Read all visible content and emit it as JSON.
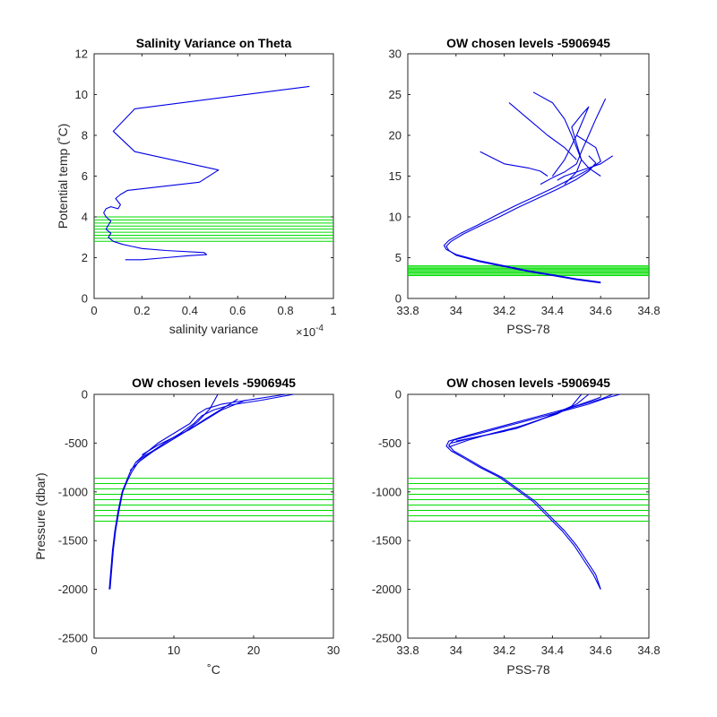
{
  "colors": {
    "profile": "#0000e6",
    "levels": "#00dd00",
    "axis": "#262626"
  },
  "chart_data": [
    {
      "id": "var",
      "type": "line",
      "title": "Salinity Variance on Theta",
      "xlabel": "salinity variance",
      "ylabel": "Potential temp (˚C)",
      "xlim": [
        0,
        1
      ],
      "ylim": [
        0,
        12
      ],
      "xticks": [
        0,
        0.2,
        0.4,
        0.6,
        0.8,
        1
      ],
      "xtick_labels": [
        "0",
        "0.2",
        "0.4",
        "0.6",
        "0.8",
        "1"
      ],
      "yticks": [
        0,
        2,
        4,
        6,
        8,
        10,
        12
      ],
      "ytick_labels": [
        "0",
        "2",
        "4",
        "6",
        "8",
        "10",
        "12"
      ],
      "x_exponent": "×10",
      "x_exponent_power": "-4",
      "series": [
        {
          "x": [
            0.13,
            0.2,
            0.3,
            0.4,
            0.47,
            0.46,
            0.3,
            0.2,
            0.16,
            0.12,
            0.08,
            0.06,
            0.07,
            0.05,
            0.06,
            0.07,
            0.05,
            0.04,
            0.05,
            0.07,
            0.1,
            0.11,
            0.09,
            0.11,
            0.14,
            0.44,
            0.52,
            0.17,
            0.08,
            0.17,
            0.9
          ],
          "y": [
            1.9,
            1.9,
            2.0,
            2.1,
            2.15,
            2.25,
            2.35,
            2.45,
            2.55,
            2.65,
            2.8,
            3.0,
            3.2,
            3.4,
            3.6,
            3.8,
            4.0,
            4.2,
            4.4,
            4.5,
            4.4,
            4.6,
            4.9,
            5.1,
            5.3,
            5.7,
            6.3,
            7.2,
            8.2,
            9.3,
            10.4
          ]
        }
      ],
      "levels": [
        2.8,
        2.95,
        3.1,
        3.25,
        3.4,
        3.55,
        3.7,
        3.85,
        4.0
      ],
      "grid": false
    },
    {
      "id": "ts",
      "type": "line",
      "title": "OW chosen levels -5906945",
      "xlabel": "PSS-78",
      "ylabel": "",
      "xlim": [
        33.8,
        34.8
      ],
      "ylim": [
        0,
        30
      ],
      "xticks": [
        33.8,
        34.0,
        34.2,
        34.4,
        34.6,
        34.8
      ],
      "xtick_labels": [
        "33.8",
        "34",
        "34.2",
        "34.4",
        "34.6",
        "34.8"
      ],
      "yticks": [
        0,
        5,
        10,
        15,
        20,
        25,
        30
      ],
      "ytick_labels": [
        "0",
        "5",
        "10",
        "15",
        "20",
        "25",
        "30"
      ],
      "series": [
        {
          "x": [
            34.6,
            34.5,
            34.4,
            34.3,
            34.2,
            34.1,
            34.0,
            33.97,
            33.96,
            33.98,
            34.03,
            34.1,
            34.18,
            34.26,
            34.34,
            34.42,
            34.5,
            34.55,
            34.58,
            34.55
          ],
          "y": [
            1.9,
            2.3,
            2.8,
            3.3,
            3.9,
            4.5,
            5.3,
            5.9,
            6.4,
            7.0,
            7.9,
            8.9,
            10.0,
            11.2,
            12.3,
            13.4,
            14.6,
            15.6,
            16.6,
            17.5
          ]
        },
        {
          "x": [
            34.6,
            34.5,
            34.4,
            34.3,
            34.2,
            34.1,
            34.0,
            33.96,
            33.95,
            33.97,
            34.02,
            34.09,
            34.16,
            34.24,
            34.32,
            34.4,
            34.48,
            34.55,
            34.6,
            34.58,
            34.5
          ],
          "y": [
            2.0,
            2.4,
            2.9,
            3.4,
            4.0,
            4.6,
            5.4,
            6.0,
            6.5,
            7.1,
            8.0,
            9.0,
            10.1,
            11.3,
            12.4,
            13.5,
            14.7,
            15.8,
            16.8,
            18.5,
            20.0
          ]
        },
        {
          "x": [
            34.45,
            34.5,
            34.52,
            34.5,
            34.48,
            34.52,
            34.55,
            34.5,
            34.45,
            34.4
          ],
          "y": [
            14.0,
            15.5,
            17.0,
            19.0,
            21.0,
            22.5,
            23.5,
            20.0,
            17.0,
            15.0
          ]
        },
        {
          "x": [
            34.32,
            34.4,
            34.45,
            34.48,
            34.5,
            34.52,
            34.55,
            34.6
          ],
          "y": [
            25.3,
            24.0,
            22.0,
            20.0,
            18.5,
            17.0,
            16.0,
            15.0
          ]
        },
        {
          "x": [
            34.22,
            34.3,
            34.38,
            34.45,
            34.5
          ],
          "y": [
            24.0,
            22.0,
            20.0,
            18.5,
            17.0
          ]
        },
        {
          "x": [
            34.62,
            34.58,
            34.55,
            34.52,
            34.5,
            34.45,
            34.4,
            34.35
          ],
          "y": [
            24.5,
            22.0,
            20.0,
            18.0,
            16.5,
            15.5,
            14.8,
            14.0
          ]
        },
        {
          "x": [
            34.1,
            34.2,
            34.3,
            34.35,
            34.38
          ],
          "y": [
            18.0,
            16.5,
            16.0,
            15.6,
            15.0
          ]
        },
        {
          "x": [
            34.65,
            34.6,
            34.55,
            34.5,
            34.45,
            34.42
          ],
          "y": [
            17.5,
            16.5,
            16.0,
            15.5,
            15.0,
            14.5
          ]
        }
      ],
      "levels": [
        2.8,
        2.95,
        3.1,
        3.25,
        3.4,
        3.55,
        3.7,
        3.85,
        4.0
      ],
      "grid": false
    },
    {
      "id": "tp",
      "type": "line",
      "title": "OW chosen levels -5906945",
      "xlabel": "˚C",
      "ylabel": "Pressure (dbar)",
      "xlim": [
        0,
        30
      ],
      "ylim": [
        -2500,
        0
      ],
      "xticks": [
        0,
        10,
        20,
        30
      ],
      "xtick_labels": [
        "0",
        "10",
        "20",
        "30"
      ],
      "yticks": [
        -2500,
        -2000,
        -1500,
        -1000,
        -500,
        0
      ],
      "ytick_labels": [
        "-2500",
        "-2000",
        "-1500",
        "-1000",
        "-500",
        "0"
      ],
      "series": [
        {
          "x": [
            1.9,
            2.1,
            2.3,
            2.6,
            3.0,
            3.5,
            4.0,
            4.5,
            5.2,
            6.5,
            8.0,
            10.0,
            12.0,
            13.0,
            14.0,
            16.0,
            20.0,
            24.0
          ],
          "y": [
            -2000,
            -1800,
            -1600,
            -1400,
            -1200,
            -1000,
            -900,
            -800,
            -700,
            -600,
            -500,
            -400,
            -300,
            -200,
            -150,
            -100,
            -50,
            0
          ]
        },
        {
          "x": [
            2.0,
            2.2,
            2.4,
            2.7,
            3.1,
            3.6,
            4.1,
            4.7,
            5.5,
            7.0,
            8.8,
            10.8,
            12.5,
            13.5,
            15.0,
            17.0,
            21.0,
            25.0
          ],
          "y": [
            -2000,
            -1800,
            -1600,
            -1400,
            -1200,
            -1000,
            -900,
            -800,
            -700,
            -600,
            -500,
            -400,
            -300,
            -220,
            -160,
            -110,
            -60,
            0
          ]
        },
        {
          "x": [
            5.2,
            6.5,
            8.5,
            10.5,
            12.5,
            14.0,
            16.0,
            18.0
          ],
          "y": [
            -700,
            -620,
            -530,
            -430,
            -330,
            -250,
            -150,
            -50
          ]
        },
        {
          "x": [
            4.5,
            5.8,
            7.5,
            9.5,
            11.5,
            13.0,
            14.5,
            15.5
          ],
          "y": [
            -780,
            -680,
            -580,
            -480,
            -380,
            -280,
            -150,
            0
          ]
        },
        {
          "x": [
            6.0,
            8.0,
            10.0,
            12.0,
            14.0,
            16.0,
            19.0
          ],
          "y": [
            -620,
            -520,
            -440,
            -360,
            -260,
            -160,
            -60
          ]
        }
      ],
      "levels": [
        -860,
        -915,
        -970,
        -1025,
        -1080,
        -1135,
        -1190,
        -1245,
        -1300
      ],
      "grid": false
    },
    {
      "id": "sp",
      "type": "line",
      "title": "OW chosen levels -5906945",
      "xlabel": "PSS-78",
      "ylabel": "",
      "xlim": [
        33.8,
        34.8
      ],
      "ylim": [
        -2500,
        0
      ],
      "xticks": [
        33.8,
        34.0,
        34.2,
        34.4,
        34.6,
        34.8
      ],
      "xtick_labels": [
        "33.8",
        "34",
        "34.2",
        "34.4",
        "34.6",
        "34.8"
      ],
      "yticks": [
        -2500,
        -2000,
        -1500,
        -1000,
        -500,
        0
      ],
      "ytick_labels": [
        "-2500",
        "-2000",
        "-1500",
        "-1000",
        "-500",
        "0"
      ],
      "series": [
        {
          "x": [
            34.6,
            34.57,
            34.53,
            34.49,
            34.44,
            34.38,
            34.32,
            34.25,
            34.18,
            34.1,
            34.03,
            33.98,
            33.96,
            33.97,
            34.05,
            34.2,
            34.35,
            34.5,
            34.6,
            34.65
          ],
          "y": [
            -2000,
            -1850,
            -1700,
            -1550,
            -1400,
            -1250,
            -1100,
            -975,
            -850,
            -750,
            -650,
            -580,
            -530,
            -480,
            -420,
            -320,
            -220,
            -120,
            -50,
            0
          ]
        },
        {
          "x": [
            34.6,
            34.58,
            34.54,
            34.5,
            34.45,
            34.39,
            34.33,
            34.26,
            34.19,
            34.11,
            34.04,
            33.99,
            33.97,
            33.99,
            34.1,
            34.25,
            34.4,
            34.55,
            34.62,
            34.68
          ],
          "y": [
            -2000,
            -1850,
            -1700,
            -1550,
            -1400,
            -1250,
            -1100,
            -975,
            -850,
            -750,
            -650,
            -580,
            -520,
            -470,
            -400,
            -300,
            -200,
            -100,
            -40,
            0
          ]
        },
        {
          "x": [
            33.98,
            34.08,
            34.2,
            34.3,
            34.42,
            34.5,
            34.55
          ],
          "y": [
            -500,
            -440,
            -380,
            -300,
            -200,
            -100,
            0
          ]
        },
        {
          "x": [
            33.97,
            34.05,
            34.15,
            34.28,
            34.38,
            34.48,
            34.52
          ],
          "y": [
            -540,
            -470,
            -400,
            -320,
            -230,
            -120,
            0
          ]
        },
        {
          "x": [
            34.0,
            34.12,
            34.25,
            34.35,
            34.45,
            34.6
          ],
          "y": [
            -480,
            -420,
            -350,
            -260,
            -160,
            -30
          ]
        }
      ],
      "levels": [
        -860,
        -915,
        -970,
        -1025,
        -1080,
        -1135,
        -1190,
        -1245,
        -1300
      ],
      "grid": false
    }
  ]
}
